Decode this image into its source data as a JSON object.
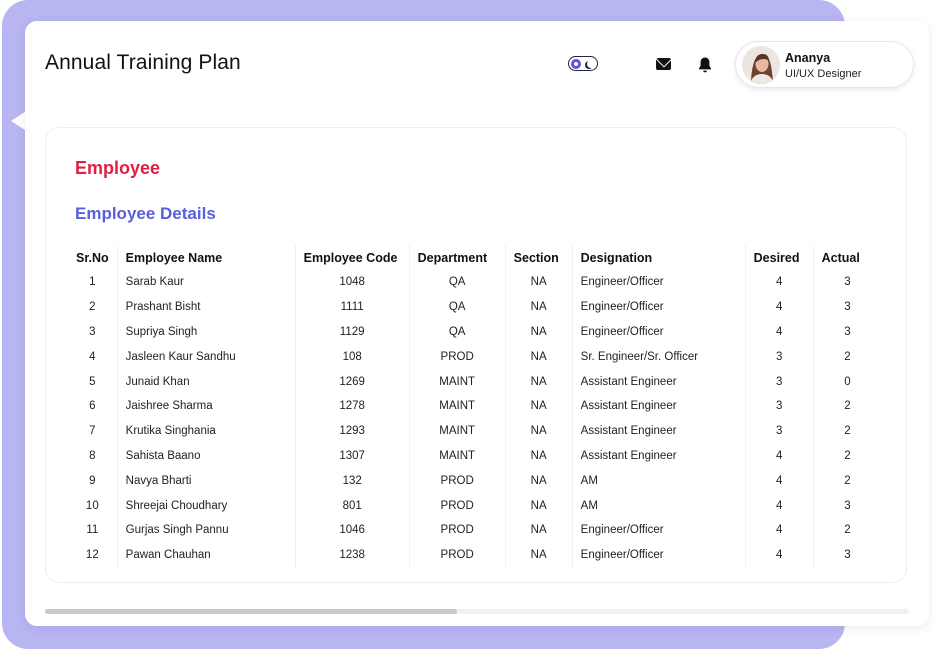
{
  "header": {
    "title": "Annual Training Plan",
    "user": {
      "name": "Ananya",
      "role": "UI/UX Designer"
    },
    "icons": {
      "theme_toggle": "theme-toggle-icon",
      "mail": "mail-icon",
      "notifications": "bell-icon"
    },
    "accent": "#5b57d6"
  },
  "main": {
    "section_title": "Employee",
    "section_title_color": "#e11d48",
    "subsection_title": "Employee Details",
    "subsection_title_color": "#5b5fd9",
    "table": {
      "columns": [
        "Sr.No",
        "Employee Name",
        "Employee Code",
        "Department",
        "Section",
        "Designation",
        "Desired",
        "Actual"
      ],
      "rows": [
        [
          "1",
          "Sarab Kaur",
          "1048",
          "QA",
          "NA",
          "Engineer/Officer",
          "4",
          "3"
        ],
        [
          "2",
          "Prashant Bisht",
          "1111",
          "QA",
          "NA",
          "Engineer/Officer",
          "4",
          "3"
        ],
        [
          "3",
          "Supriya Singh",
          "1129",
          "QA",
          "NA",
          "Engineer/Officer",
          "4",
          "3"
        ],
        [
          "4",
          "Jasleen Kaur Sandhu",
          "108",
          "PROD",
          "NA",
          "Sr. Engineer/Sr. Officer",
          "3",
          "2"
        ],
        [
          "5",
          "Junaid Khan",
          "1269",
          "MAINT",
          "NA",
          "Assistant Engineer",
          "3",
          "0"
        ],
        [
          "6",
          "Jaishree Sharma",
          "1278",
          "MAINT",
          "NA",
          "Assistant Engineer",
          "3",
          "2"
        ],
        [
          "7",
          "Krutika Singhania",
          "1293",
          "MAINT",
          "NA",
          "Assistant Engineer",
          "3",
          "2"
        ],
        [
          "8",
          "Sahista Baano",
          "1307",
          "MAINT",
          "NA",
          "Assistant Engineer",
          "4",
          "2"
        ],
        [
          "9",
          "Navya Bharti",
          "132",
          "PROD",
          "NA",
          "AM",
          "4",
          "2"
        ],
        [
          "10",
          "Shreejai Choudhary",
          "801",
          "PROD",
          "NA",
          "AM",
          "4",
          "3"
        ],
        [
          "11",
          "Gurjas Singh Pannu",
          "1046",
          "PROD",
          "NA",
          "Engineer/Officer",
          "4",
          "2"
        ],
        [
          "12",
          "Pawan Chauhan",
          "1238",
          "PROD",
          "NA",
          "Engineer/Officer",
          "4",
          "3"
        ]
      ]
    }
  }
}
